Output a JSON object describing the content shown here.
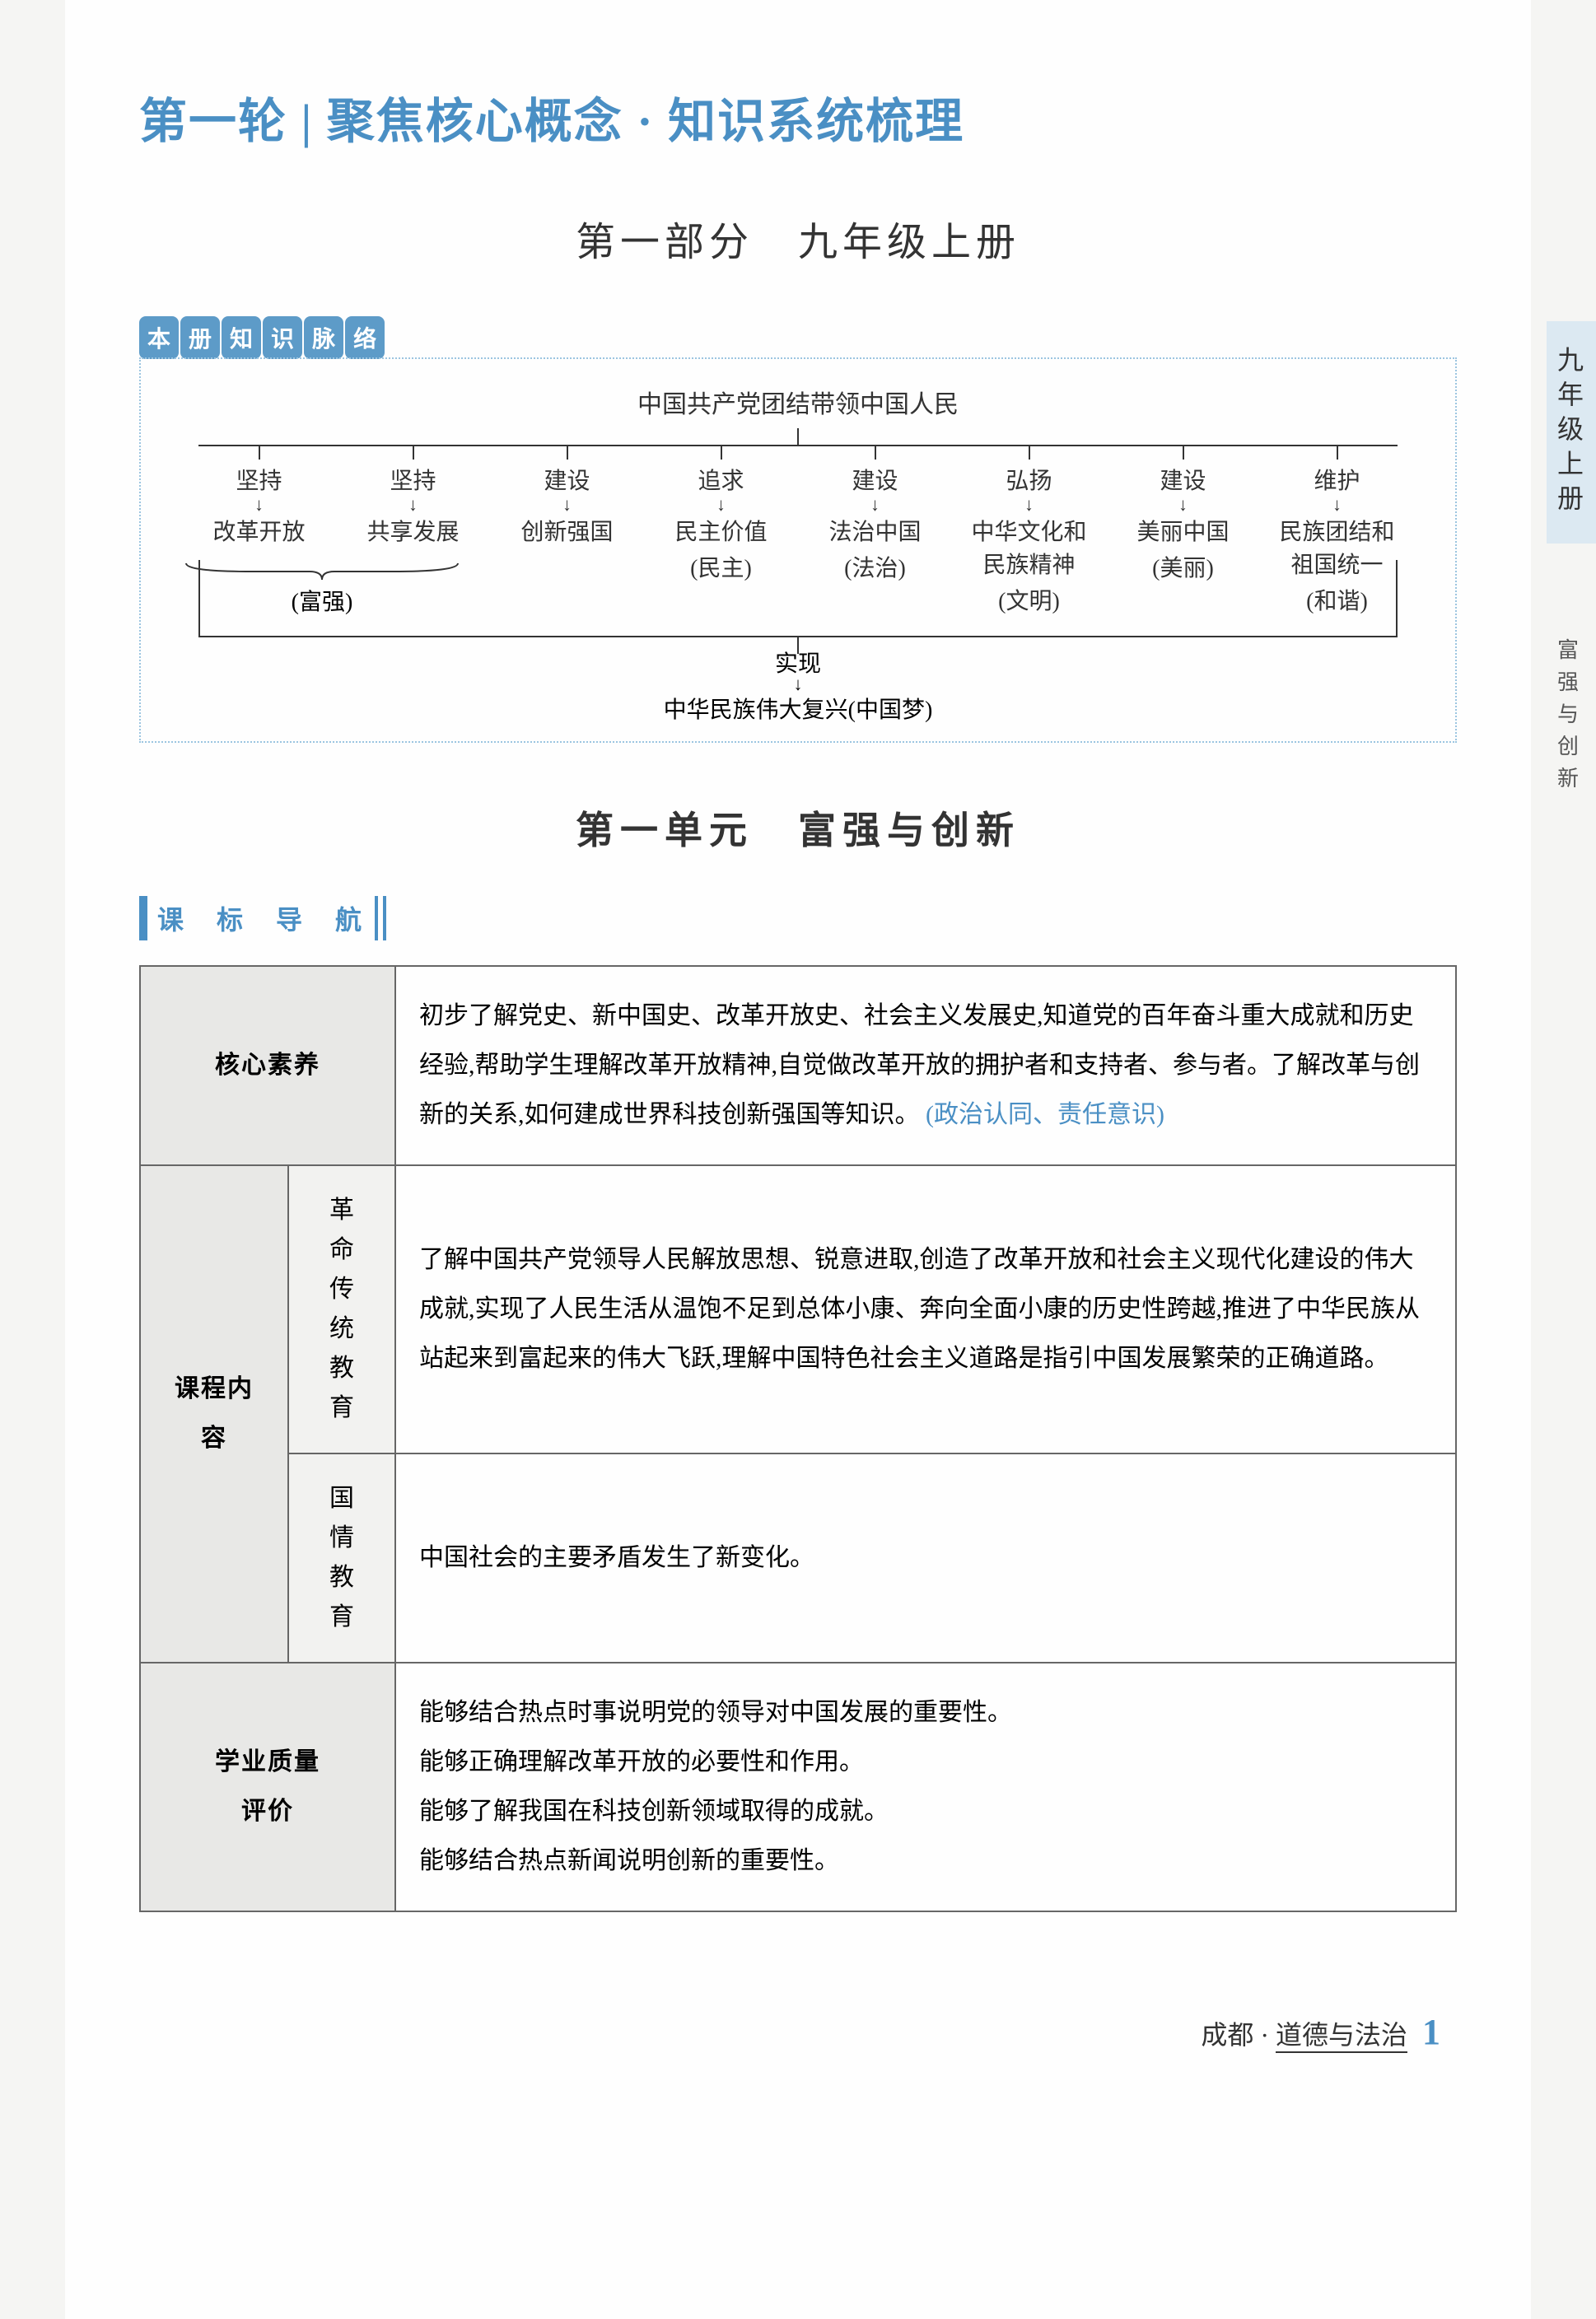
{
  "main_title": "第一轮 | 聚焦核心概念 · 知识系统梳理",
  "sub_title": "第一部分　九年级上册",
  "badge1_chars": [
    "本",
    "册",
    "知",
    "识",
    "脉",
    "络"
  ],
  "diagram": {
    "top": "中国共产党团结带领中国人民",
    "branches": [
      {
        "l1": "坚持",
        "l2": "改革开放",
        "paren": ""
      },
      {
        "l1": "坚持",
        "l2": "共享发展",
        "paren": ""
      },
      {
        "l1": "建设",
        "l2": "创新强国",
        "paren": ""
      },
      {
        "l1": "追求",
        "l2": "民主价值",
        "paren": "(民主)"
      },
      {
        "l1": "建设",
        "l2": "法治中国",
        "paren": "(法治)"
      },
      {
        "l1": "弘扬",
        "l2": "中华文化和民族精神",
        "paren": "(文明)"
      },
      {
        "l1": "建设",
        "l2": "美丽中国",
        "paren": "(美丽)"
      },
      {
        "l1": "维护",
        "l2": "民族团结和祖国统一",
        "paren": "(和谐)"
      }
    ],
    "brace_label": "(富强)",
    "bottom1": "实现",
    "bottom2": "中华民族伟大复兴(中国梦)"
  },
  "unit_title": "第一单元　富强与创新",
  "section_tag": "课 标 导 航",
  "table": {
    "rows": [
      {
        "head": "核心素养",
        "sub": "",
        "body": "初步了解党史、新中国史、改革开放史、社会主义发展史,知道党的百年奋斗重大成就和历史经验,帮助学生理解改革开放精神,自觉做改革开放的拥护者和支持者、参与者。了解改革与创新的关系,如何建成世界科技创新强国等知识。",
        "note": "(政治认同、责任意识)"
      },
      {
        "head": "课程内容",
        "sub": "革命传统教育",
        "body": "了解中国共产党领导人民解放思想、锐意进取,创造了改革开放和社会主义现代化建设的伟大成就,实现了人民生活从温饱不足到总体小康、奔向全面小康的历史性跨越,推进了中华民族从站起来到富起来的伟大飞跃,理解中国特色社会主义道路是指引中国发展繁荣的正确道路。"
      },
      {
        "head": "",
        "sub": "国情教育",
        "body": "中国社会的主要矛盾发生了新变化。"
      },
      {
        "head": "学业质量评价",
        "sub": "",
        "lines": [
          "能够结合热点时事说明党的领导对中国发展的重要性。",
          "能够正确理解改革开放的必要性和作用。",
          "能够了解我国在科技创新领域取得的成就。",
          "能够结合热点新闻说明创新的重要性。"
        ]
      }
    ]
  },
  "side_tab": "九年级上册",
  "side_text": "富强与创新",
  "footer_text": "成都 · ",
  "footer_underline": "道德与法治",
  "page_num": "1",
  "colors": {
    "primary": "#4a8fc4",
    "badge": "#5d9bc8",
    "border": "#666",
    "side_bg": "#dce9f2"
  }
}
